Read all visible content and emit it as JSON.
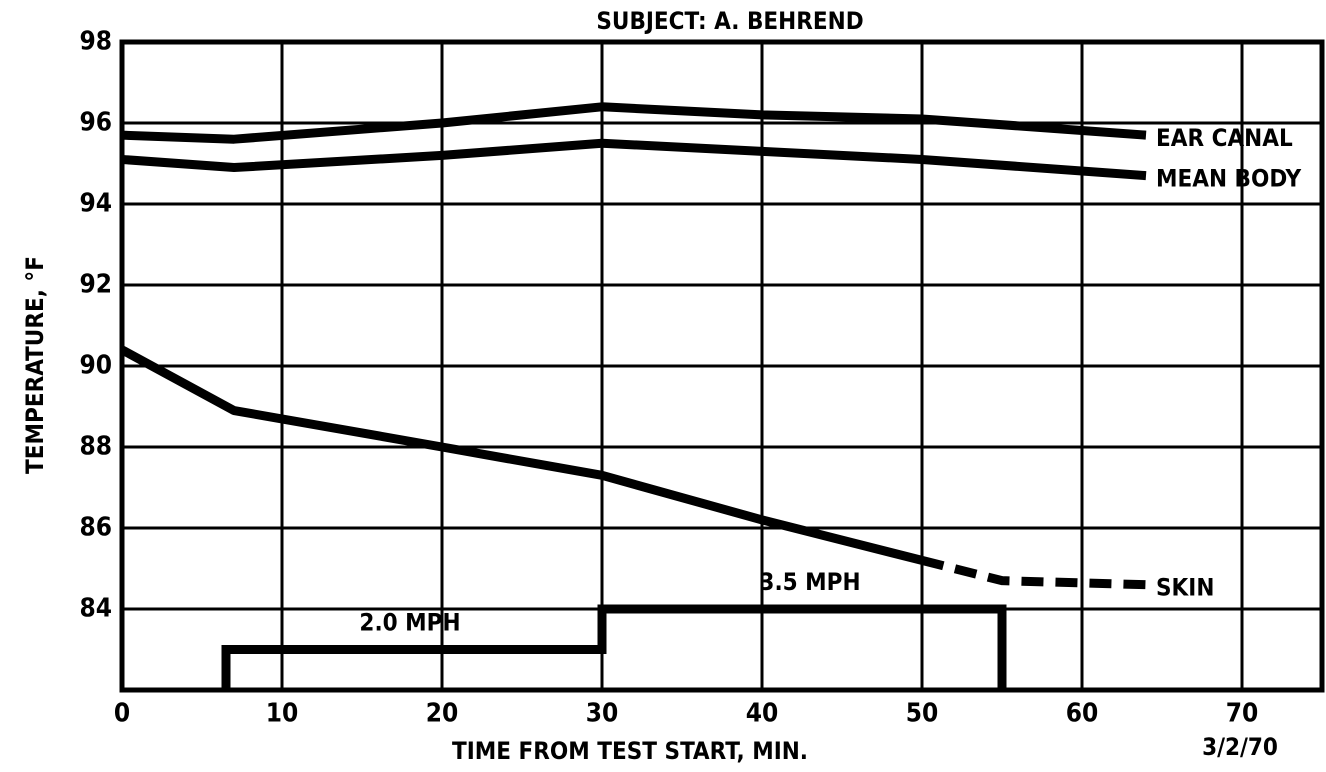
{
  "chart_data": {
    "type": "line",
    "title": "SUBJECT:  A. BEHREND",
    "x_label": "TIME FROM TEST START, MIN.",
    "y_label": "TEMPERATURE, °F",
    "date": "3/2/70",
    "xlim": [
      0,
      75
    ],
    "ylim": [
      82,
      98
    ],
    "xticks": [
      0,
      10,
      20,
      30,
      40,
      50,
      60,
      70
    ],
    "yticks": [
      84,
      86,
      88,
      90,
      92,
      94,
      96,
      98
    ],
    "grid": true,
    "series": [
      {
        "name": "EAR CANAL",
        "color": "#000000",
        "x": [
          0,
          7,
          20,
          30,
          40,
          50,
          64
        ],
        "values": [
          95.7,
          95.6,
          96.0,
          96.4,
          96.2,
          96.1,
          95.7
        ]
      },
      {
        "name": "MEAN BODY",
        "color": "#000000",
        "x": [
          0,
          7,
          20,
          30,
          40,
          50,
          64
        ],
        "values": [
          95.1,
          94.9,
          95.2,
          95.5,
          95.3,
          95.1,
          94.7
        ]
      },
      {
        "name": "SKIN",
        "color": "#000000",
        "x": [
          0,
          7,
          20,
          30,
          40,
          50,
          55,
          64
        ],
        "values": [
          90.4,
          88.9,
          88.0,
          87.3,
          86.2,
          85.2,
          84.7,
          84.6
        ],
        "dashed_x": [
          50,
          64
        ]
      }
    ],
    "speed_profile": {
      "color": "#000000",
      "x": [
        6.5,
        6.5,
        30,
        30,
        55,
        55
      ],
      "values": [
        82,
        83,
        83,
        84,
        84,
        82
      ]
    },
    "annotations": [
      {
        "text": "2.0 MPH",
        "x": 18,
        "y": 83.5
      },
      {
        "text": "3.5 MPH",
        "x": 43,
        "y": 84.5
      }
    ]
  }
}
